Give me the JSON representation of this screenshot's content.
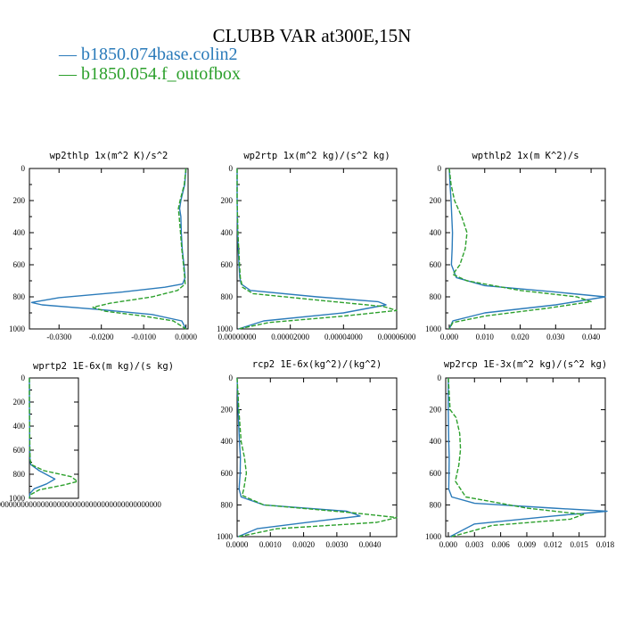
{
  "title": "CLUBB VAR at300E,15N",
  "legend": [
    {
      "label": "b1850.074base.colin2",
      "color": "#2b7bba"
    },
    {
      "label": "b1850.054.f_outofbox",
      "color": "#2ca02c"
    }
  ],
  "chart_data": [
    {
      "type": "line",
      "title": "wp2thlp  1x(m^2 K)/s^2",
      "xlim": [
        -0.037,
        0.0005
      ],
      "ylim": [
        1000,
        0
      ],
      "xticks": [
        -0.03,
        -0.02,
        -0.01,
        0.0
      ],
      "xtick_labels": [
        "-0.0300",
        "-0.0200",
        "-0.0100",
        "0.0000"
      ],
      "yticks": [
        0,
        200,
        400,
        600,
        800,
        1000
      ],
      "ytick_labels": [
        "0",
        "200",
        "400",
        "600",
        "800",
        "1000"
      ],
      "series": [
        {
          "name": "b1850.074base.colin2",
          "x": [
            0.0,
            -0.0003,
            -0.0012,
            -0.0015,
            -0.0012,
            -0.0011,
            -0.0009,
            -0.0005,
            -0.0002,
            -0.0008,
            -0.005,
            -0.015,
            -0.03,
            -0.0365,
            -0.034,
            -0.02,
            -0.008,
            -0.001,
            0.0
          ],
          "y": [
            0,
            100,
            200,
            250,
            300,
            400,
            500,
            600,
            680,
            720,
            740,
            770,
            805,
            835,
            850,
            880,
            910,
            950,
            1000
          ]
        },
        {
          "name": "b1850.054.f_outofbox",
          "x": [
            0.0,
            -0.0004,
            -0.0014,
            -0.0018,
            -0.0016,
            -0.0013,
            -0.001,
            -0.0006,
            -0.0003,
            -0.0002,
            -0.002,
            -0.008,
            -0.018,
            -0.022,
            -0.019,
            -0.01,
            -0.003,
            0.0
          ],
          "y": [
            0,
            100,
            200,
            250,
            300,
            400,
            500,
            600,
            680,
            720,
            760,
            800,
            840,
            865,
            890,
            920,
            950,
            1000
          ]
        }
      ]
    },
    {
      "type": "line",
      "title": "wp2rtp  1x(m^2 kg)/(s^2 kg)",
      "xlim": [
        0,
        6e-05
      ],
      "ylim": [
        1000,
        0
      ],
      "xticks": [
        0,
        2e-05,
        4e-05,
        6e-05
      ],
      "xtick_labels": [
        "0.00000000",
        "0.00002000",
        "0.00004000",
        "0.00006000"
      ],
      "yticks": [
        0,
        200,
        400,
        600,
        800,
        1000
      ],
      "ytick_labels": [
        "0",
        "200",
        "400",
        "600",
        "800",
        "1000"
      ],
      "series": [
        {
          "name": "b1850.074base.colin2",
          "x": [
            0.0,
            0.0,
            2e-07,
            4e-07,
            7e-07,
            1e-06,
            1.5e-06,
            5e-06,
            3e-05,
            5.3e-05,
            5.6e-05,
            4e-05,
            1e-05,
            5e-07
          ],
          "y": [
            0,
            200,
            400,
            500,
            600,
            680,
            720,
            760,
            800,
            830,
            850,
            900,
            950,
            1000
          ]
        },
        {
          "name": "b1850.054.f_outofbox",
          "x": [
            0.0,
            0.0,
            3e-07,
            6e-07,
            9e-07,
            1.2e-06,
            2e-06,
            6e-06,
            3e-05,
            5.5e-05,
            6e-05,
            4e-05,
            1.2e-05,
            5e-07
          ],
          "y": [
            0,
            200,
            400,
            500,
            600,
            680,
            740,
            780,
            820,
            860,
            885,
            920,
            960,
            1000
          ]
        }
      ]
    },
    {
      "type": "line",
      "title": "wpthlp2  1x(m K^2)/s",
      "xlim": [
        -0.001,
        0.044
      ],
      "ylim": [
        1000,
        0
      ],
      "xticks": [
        0.0,
        0.01,
        0.02,
        0.03,
        0.04
      ],
      "xtick_labels": [
        "0.000",
        "0.010",
        "0.020",
        "0.030",
        "0.040"
      ],
      "yticks": [
        0,
        200,
        400,
        600,
        800,
        1000
      ],
      "ytick_labels": [
        "0",
        "200",
        "400",
        "600",
        "800",
        "1000"
      ],
      "series": [
        {
          "name": "b1850.074base.colin2",
          "x": [
            0.0,
            0.0002,
            0.0005,
            0.0007,
            0.0009,
            0.0008,
            0.0006,
            0.002,
            0.01,
            0.03,
            0.044,
            0.03,
            0.01,
            0.001,
            0.0
          ],
          "y": [
            0,
            100,
            200,
            300,
            400,
            500,
            600,
            680,
            730,
            770,
            800,
            850,
            900,
            950,
            1000
          ]
        },
        {
          "name": "b1850.054.f_outofbox",
          "x": [
            0.0,
            0.0005,
            0.0015,
            0.0035,
            0.005,
            0.0045,
            0.003,
            0.001,
            0.005,
            0.02,
            0.036,
            0.04,
            0.028,
            0.01,
            0.001,
            0.0
          ],
          "y": [
            0,
            100,
            200,
            300,
            400,
            500,
            600,
            660,
            700,
            760,
            800,
            830,
            870,
            920,
            960,
            1000
          ]
        }
      ]
    },
    {
      "type": "line",
      "title": "wprtp2  1E-6x(m kg)/(s kg)",
      "xlim": [
        0,
        1
      ],
      "ylim": [
        1000,
        0
      ],
      "xticks": [],
      "xtick_labels": [
        "0.0000000000000000000000000000000000000000000000000000"
      ],
      "yticks": [
        0,
        200,
        400,
        600,
        800,
        1000
      ],
      "ytick_labels": [
        "0",
        "200",
        "400",
        "600",
        "800",
        "1000"
      ],
      "series": [
        {
          "name": "b1850.074base.colin2",
          "x": [
            0.0,
            0.0,
            0.003,
            0.008,
            0.012,
            0.03,
            0.2,
            0.52,
            0.35,
            0.1,
            0.01,
            0.0
          ],
          "y": [
            0,
            200,
            400,
            600,
            680,
            720,
            770,
            840,
            880,
            920,
            960,
            1000
          ]
        },
        {
          "name": "b1850.054.f_outofbox",
          "x": [
            0.0,
            0.0,
            0.004,
            0.01,
            0.015,
            0.04,
            0.3,
            0.85,
            0.98,
            0.7,
            0.2,
            0.02,
            0.0
          ],
          "y": [
            0,
            200,
            400,
            600,
            680,
            720,
            770,
            820,
            860,
            890,
            930,
            970,
            1000
          ]
        }
      ]
    },
    {
      "type": "line",
      "title": "rcp2  1E-6x(kg^2)/(kg^2)",
      "xlim": [
        0,
        0.0048
      ],
      "ylim": [
        1000,
        0
      ],
      "xticks": [
        0,
        0.001,
        0.002,
        0.003,
        0.004
      ],
      "xtick_labels": [
        "0.0000",
        "0.0010",
        "0.0020",
        "0.0030",
        "0.0040"
      ],
      "yticks": [
        0,
        200,
        400,
        600,
        800,
        1000
      ],
      "ytick_labels": [
        "0",
        "200",
        "400",
        "600",
        "800",
        "1000"
      ],
      "series": [
        {
          "name": "b1850.074base.colin2",
          "x": [
            0.0,
            3e-05,
            7e-05,
            0.0001,
            9e-05,
            6e-05,
            0.00012,
            0.0008,
            0.0033,
            0.0037,
            0.0025,
            0.0006,
            3e-05
          ],
          "y": [
            0,
            200,
            400,
            500,
            600,
            700,
            750,
            800,
            840,
            870,
            900,
            950,
            1000
          ]
        },
        {
          "name": "b1850.054.f_outofbox",
          "x": [
            0.0,
            5e-05,
            0.00012,
            0.00022,
            0.00028,
            0.0002,
            0.00015,
            0.0008,
            0.0035,
            0.0048,
            0.0042,
            0.0012,
            5e-05
          ],
          "y": [
            0,
            200,
            400,
            500,
            600,
            700,
            740,
            800,
            850,
            880,
            910,
            950,
            1000
          ]
        }
      ]
    },
    {
      "type": "line",
      "title": "wp2rcp  1E-3x(m^2 kg)/(s^2 kg)",
      "xlim": [
        -0.0003,
        0.018
      ],
      "ylim": [
        1000,
        0
      ],
      "xticks": [
        0.0,
        0.003,
        0.006,
        0.009,
        0.012,
        0.015,
        0.018
      ],
      "xtick_labels": [
        "0.000",
        "0.003",
        "0.006",
        "0.009",
        "0.012",
        "0.015",
        "0.018"
      ],
      "yticks": [
        0,
        200,
        400,
        600,
        800,
        1000
      ],
      "ytick_labels": [
        "0",
        "200",
        "400",
        "600",
        "800",
        "1000"
      ],
      "series": [
        {
          "name": "b1850.074base.colin2",
          "x": [
            0.0,
            0.0,
            5e-05,
            0.0001,
            8e-05,
            5e-05,
            0.0004,
            0.003,
            0.012,
            0.0182,
            0.012,
            0.003,
            0.0002
          ],
          "y": [
            0,
            200,
            400,
            500,
            600,
            700,
            750,
            790,
            820,
            840,
            870,
            920,
            1000
          ]
        },
        {
          "name": "b1850.054.f_outofbox",
          "x": [
            0.0,
            0.0002,
            0.0009,
            0.0013,
            0.0014,
            0.0012,
            0.0008,
            0.002,
            0.009,
            0.0155,
            0.014,
            0.005,
            0.0004
          ],
          "y": [
            0,
            200,
            250,
            350,
            450,
            550,
            650,
            750,
            820,
            860,
            890,
            930,
            1000
          ]
        }
      ]
    }
  ]
}
